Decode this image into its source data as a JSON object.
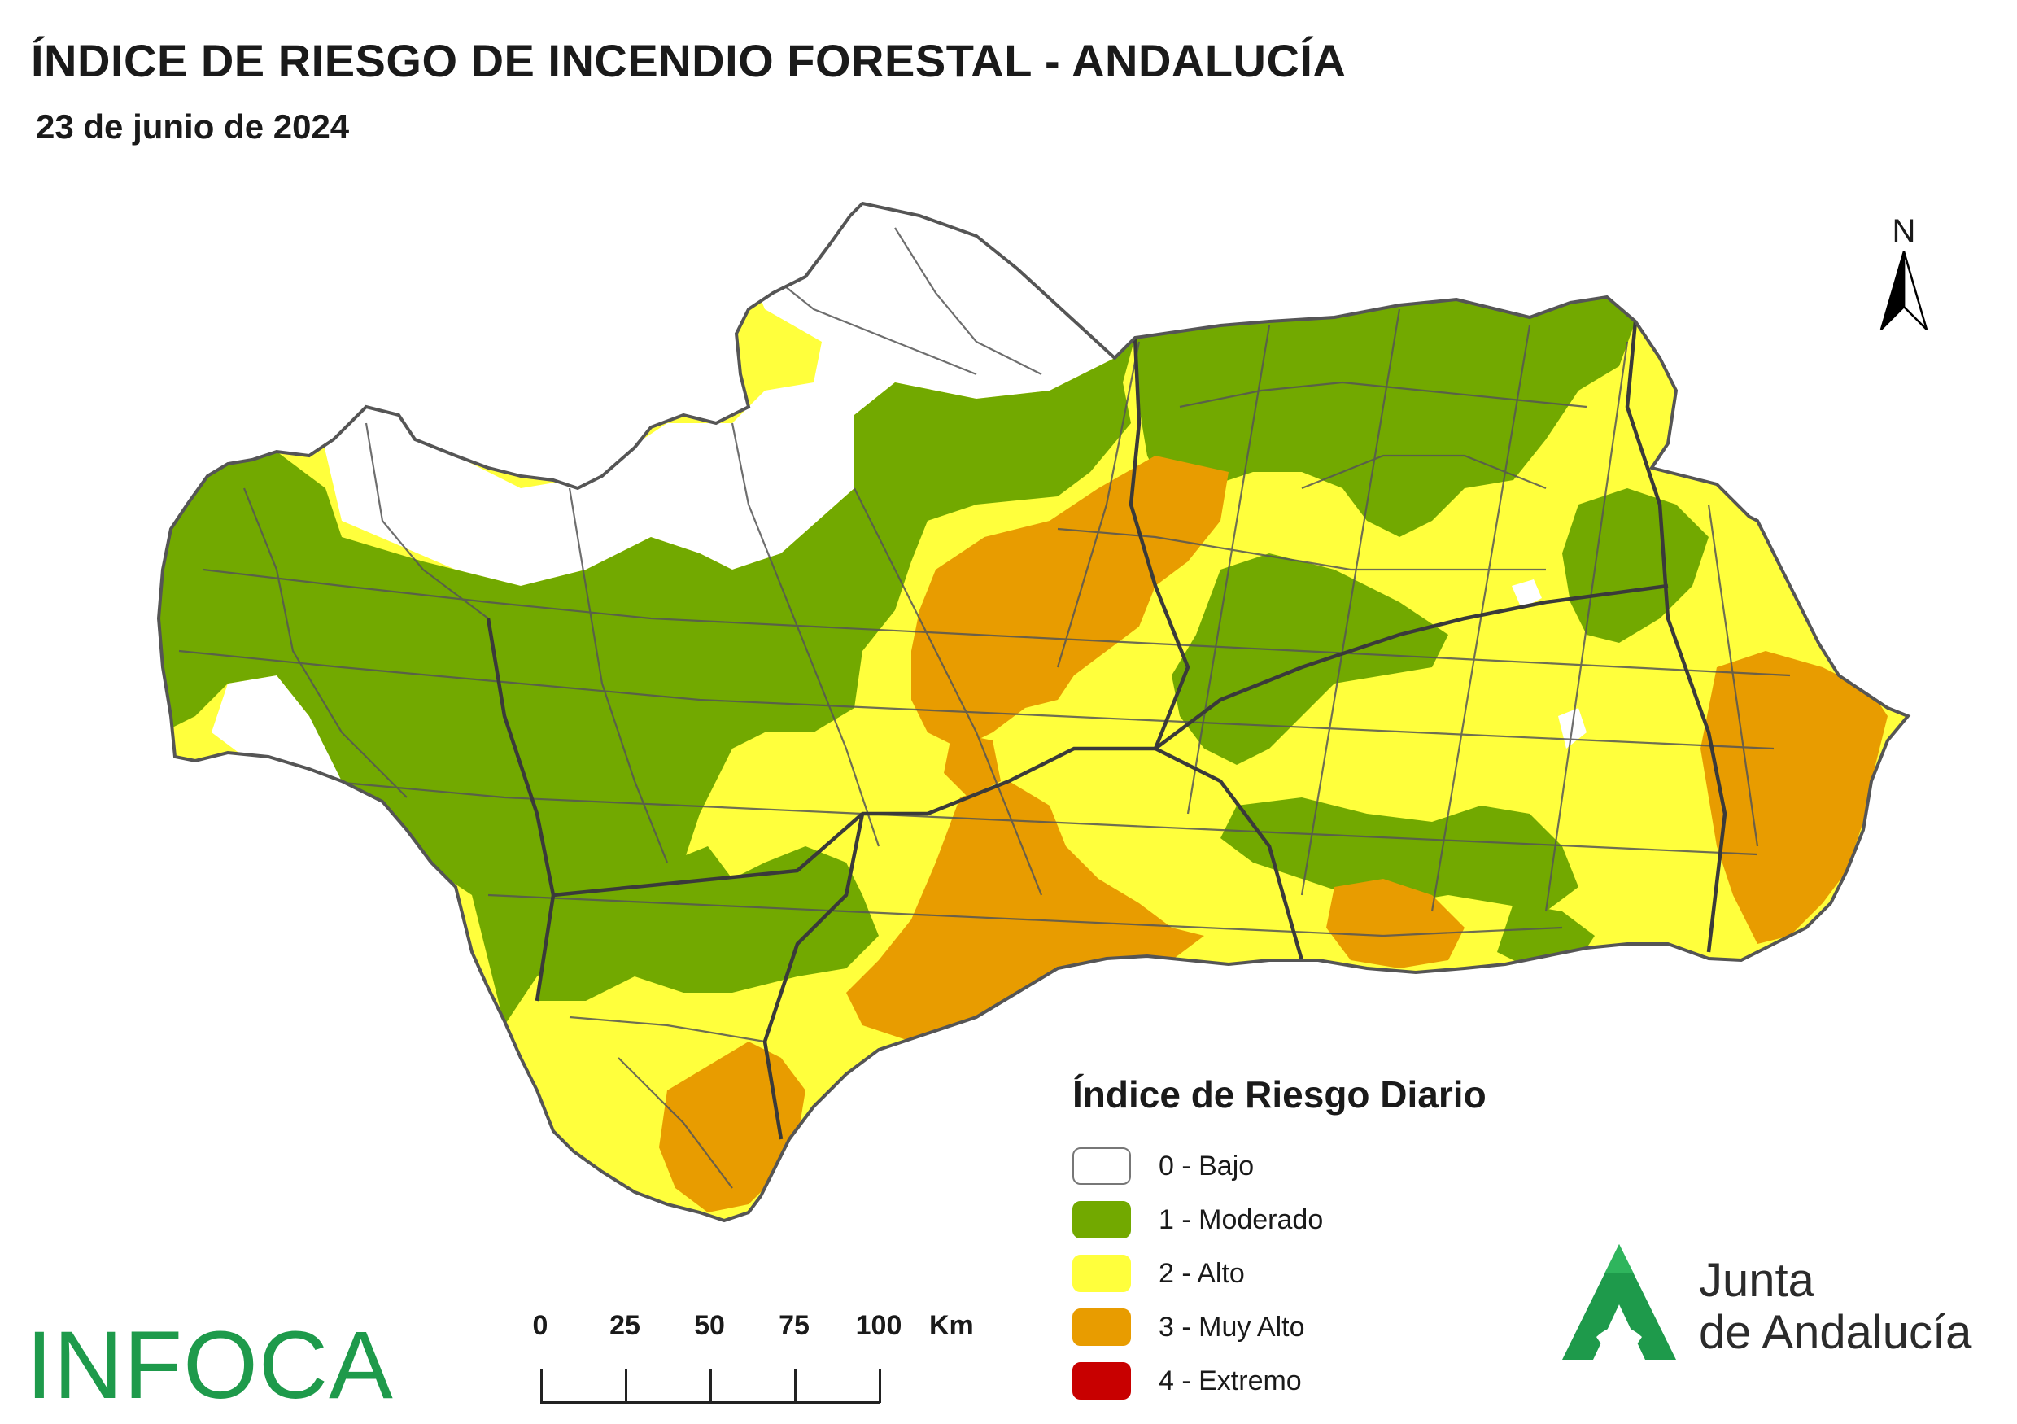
{
  "header": {
    "title": "ÍNDICE DE RIESGO DE INCENDIO FORESTAL - ANDALUCÍA",
    "date": "23 de junio de 2024"
  },
  "north_arrow": {
    "label": "N",
    "icon": "north-arrow-icon"
  },
  "legend": {
    "title": "Índice de Riesgo Diario",
    "items": [
      {
        "label": "0 - Bajo",
        "color": "#ffffff"
      },
      {
        "label": "1 - Moderado",
        "color": "#72a900"
      },
      {
        "label": "2 - Alto",
        "color": "#ffff3c"
      },
      {
        "label": "3 - Muy Alto",
        "color": "#e89c00"
      },
      {
        "label": "4 - Extremo",
        "color": "#c80000"
      }
    ]
  },
  "scale_bar": {
    "ticks": [
      "0",
      "25",
      "50",
      "75",
      "100"
    ],
    "unit": "Km"
  },
  "logos": {
    "infoca": "INFOCA",
    "junta_line1": "Junta",
    "junta_line2": "de Andalucía",
    "junta_color": "#1e9a4b"
  },
  "map_colors": {
    "bajo": "#ffffff",
    "moderado": "#72a900",
    "alto": "#ffff3c",
    "muy_alto": "#e89c00",
    "boundary": "#555555",
    "province_boundary": "#3a3a3a"
  }
}
